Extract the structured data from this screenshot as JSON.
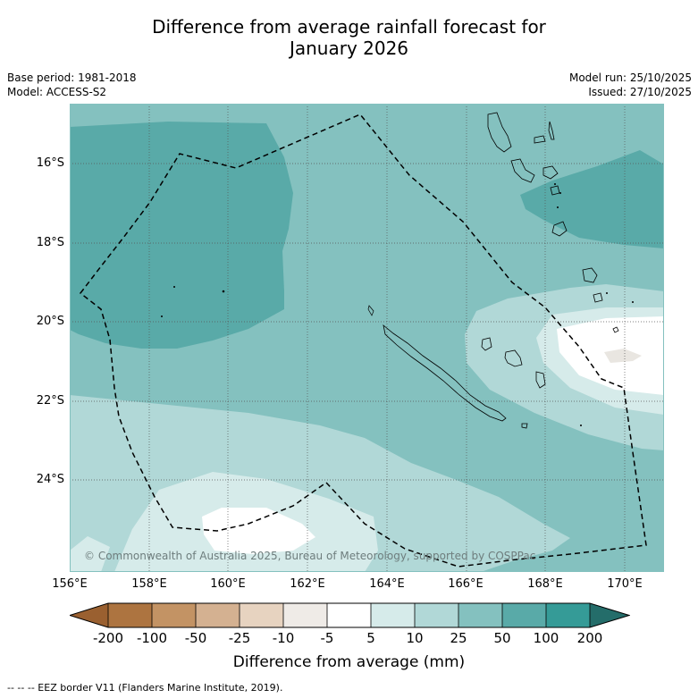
{
  "title": {
    "line1": "Difference from average rainfall forecast for",
    "line2": "January 2026"
  },
  "info": {
    "base_period": "Base period: 1981-2018",
    "model": "Model: ACCESS-S2",
    "model_run": "Model run: 25/10/2025",
    "issued": "Issued: 27/10/2025"
  },
  "map": {
    "lat_labels": [
      "16°S",
      "18°S",
      "20°S",
      "22°S",
      "24°S"
    ],
    "lon_labels": [
      "156°E",
      "158°E",
      "160°E",
      "162°E",
      "164°E",
      "166°E",
      "168°E",
      "170°E"
    ],
    "copyright": "© Commonwealth of Australia 2025, Bureau of Meteorology, supported by COSPPac",
    "colors": {
      "ocean_base": "#84c1bf",
      "positive_50_100": "#59aaa8",
      "positive_10_25": "#b1d8d7",
      "positive_5_10": "#d6ebea",
      "near_zero": "#ffffff",
      "land_outline": "#000000",
      "eez_line": "#000000"
    }
  },
  "legend": {
    "title": "Difference from average (mm)",
    "tick_labels": [
      "-200",
      "-100",
      "-50",
      "-25",
      "-10",
      "-5",
      "5",
      "10",
      "25",
      "50",
      "100",
      "200"
    ],
    "colors": [
      "#9a6030",
      "#ad7440",
      "#c39364",
      "#d4b191",
      "#e7d3c0",
      "#efebe7",
      "#ffffff",
      "#d6ebea",
      "#b1d8d7",
      "#84c1bf",
      "#59aaa8",
      "#359b97",
      "#246d6a"
    ]
  },
  "footer": "--  --  -- EEZ border V11 (Flanders Marine Institute, 2019)."
}
